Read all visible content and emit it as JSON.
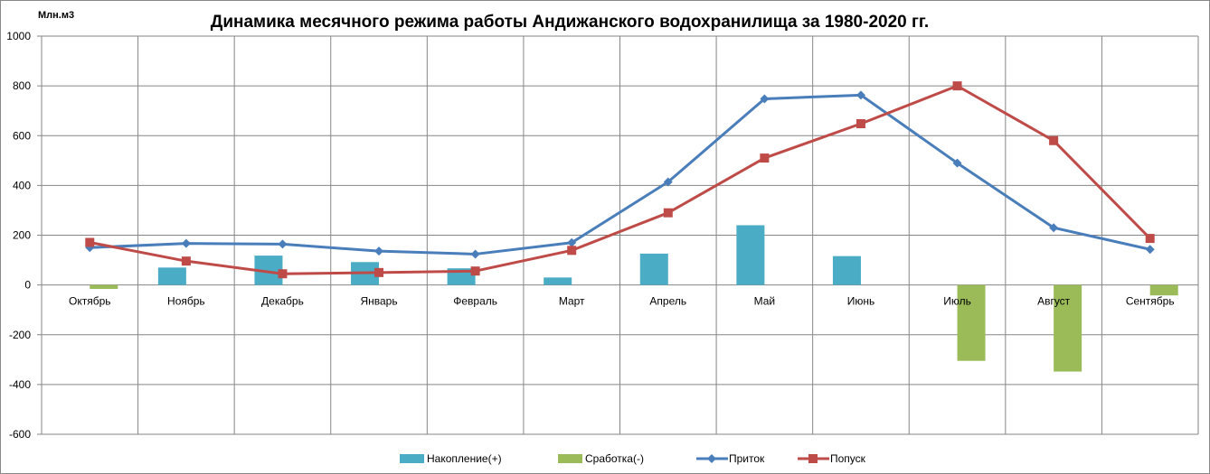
{
  "chart_data": {
    "type": "bar+line",
    "title": "Динамика месячного режима работы Андижанского водохранилища за 1980-2020 гг.",
    "ylabel": "Млн.м3",
    "ylim": [
      -600,
      1000
    ],
    "yticks": [
      1000,
      800,
      600,
      400,
      200,
      0,
      -200,
      -400,
      -600
    ],
    "grid": true,
    "legend_position": "bottom",
    "categories": [
      "Октябрь",
      "Ноябрь",
      "Декабрь",
      "Январь",
      "Февраль",
      "Март",
      "Апрель",
      "Май",
      "Июнь",
      "Июль",
      "Август",
      "Сентябрь"
    ],
    "series": [
      {
        "name": "Накопление(+)",
        "kind": "bar",
        "color": "#4bacc6",
        "values": [
          null,
          70,
          118,
          92,
          67,
          30,
          126,
          240,
          116,
          null,
          null,
          null
        ]
      },
      {
        "name": "Сработка(-)",
        "kind": "bar",
        "color": "#9bbb59",
        "values": [
          -16,
          null,
          null,
          null,
          null,
          null,
          null,
          null,
          null,
          -305,
          -348,
          -42
        ]
      },
      {
        "name": "Приток",
        "kind": "line",
        "marker": "diamond",
        "color": "#4a7ebb",
        "values": [
          150,
          167,
          164,
          136,
          124,
          170,
          414,
          748,
          763,
          490,
          230,
          143
        ]
      },
      {
        "name": "Попуск",
        "kind": "line",
        "marker": "square",
        "color": "#be4b48",
        "values": [
          171,
          96,
          45,
          50,
          56,
          139,
          290,
          510,
          648,
          800,
          580,
          187
        ]
      }
    ]
  }
}
